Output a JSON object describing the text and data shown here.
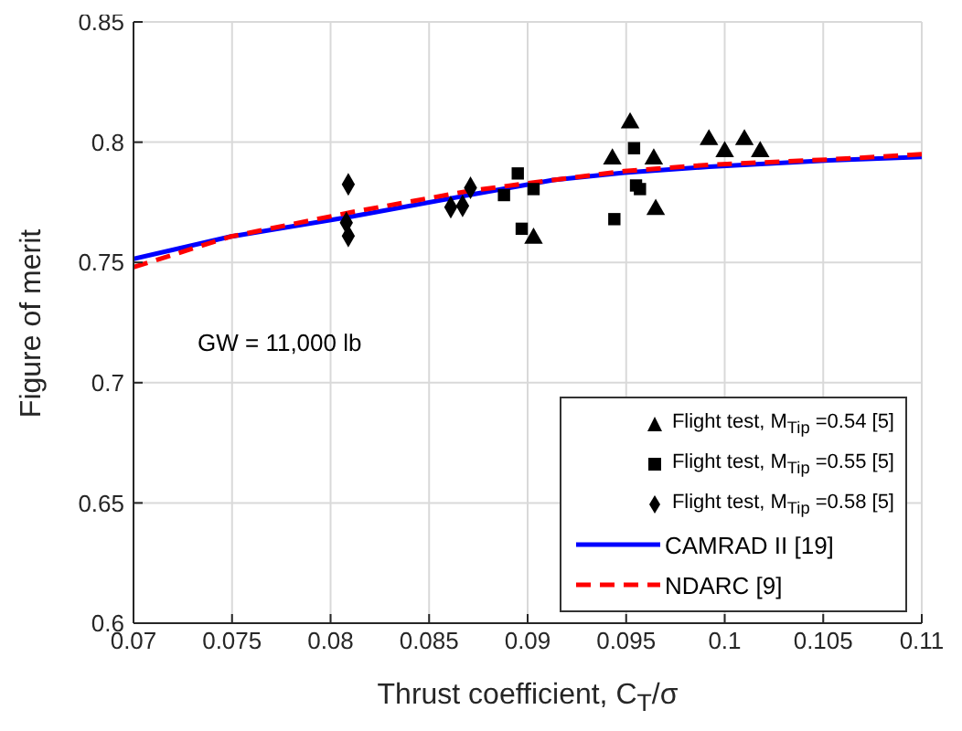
{
  "chart_data": {
    "type": "scatter",
    "xlabel": "Thrust coefficient, C$_{T}$/σ",
    "ylabel": "Figure of merit",
    "xlim": [
      0.07,
      0.11
    ],
    "xticks": [
      0.07,
      0.075,
      0.08,
      0.085,
      0.09,
      0.095,
      0.1,
      0.105,
      0.11
    ],
    "ylim": [
      0.6,
      0.85
    ],
    "yticks": [
      0.6,
      0.65,
      0.7,
      0.75,
      0.8,
      0.85
    ],
    "grid": true,
    "legend": "bottom right",
    "annotations": [
      "GW = 11,000 lb"
    ],
    "series": [
      {
        "name": "Flight test, M$_{Tip}$ =0.54 [5]",
        "marker": "triangle",
        "color": "#000000",
        "x": [
          0.0952,
          0.0943,
          0.0964,
          0.0965,
          0.0903,
          0.0992,
          0.1,
          0.101,
          0.1018
        ],
        "values": [
          0.808,
          0.793,
          0.793,
          0.772,
          0.76,
          0.801,
          0.796,
          0.801,
          0.796
        ]
      },
      {
        "name": "Flight test, M$_{Tip}$ =0.55 [5]",
        "marker": "square",
        "color": "#000000",
        "x": [
          0.0954,
          0.0955,
          0.0957,
          0.0944,
          0.0895,
          0.0888,
          0.0903,
          0.0897
        ],
        "values": [
          0.7975,
          0.782,
          0.7805,
          0.768,
          0.787,
          0.778,
          0.7805,
          0.764
        ]
      },
      {
        "name": "Flight test, M$_{Tip}$ =0.58 [5]",
        "marker": "diamond",
        "color": "#000000",
        "x": [
          0.0809,
          0.0808,
          0.0809,
          0.0861,
          0.0867,
          0.0871
        ],
        "values": [
          0.7825,
          0.7665,
          0.761,
          0.773,
          0.7735,
          0.781
        ]
      },
      {
        "name": "CAMRAD II [19]",
        "type": "line",
        "marker": "none",
        "line_style": "solid",
        "color": "#0000ff",
        "x": [
          0.07,
          0.0749,
          0.081,
          0.087,
          0.0913,
          0.0949,
          0.0992,
          0.1053,
          0.11
        ],
        "values": [
          0.7515,
          0.7607,
          0.769,
          0.778,
          0.7843,
          0.7873,
          0.7898,
          0.7924,
          0.7939
        ]
      },
      {
        "name": "NDARC [9]",
        "type": "line",
        "marker": "none",
        "line_style": "dashed",
        "color": "#ff0000",
        "x": [
          0.07,
          0.0749,
          0.081,
          0.087,
          0.0913,
          0.0949,
          0.0992,
          0.1053,
          0.11
        ],
        "values": [
          0.748,
          0.7607,
          0.7708,
          0.7797,
          0.7843,
          0.788,
          0.7906,
          0.7928,
          0.795
        ]
      }
    ]
  }
}
